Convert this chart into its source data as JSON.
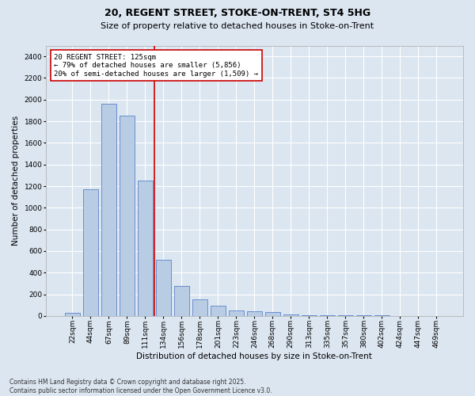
{
  "title1": "20, REGENT STREET, STOKE-ON-TRENT, ST4 5HG",
  "title2": "Size of property relative to detached houses in Stoke-on-Trent",
  "xlabel": "Distribution of detached houses by size in Stoke-on-Trent",
  "ylabel": "Number of detached properties",
  "categories": [
    "22sqm",
    "44sqm",
    "67sqm",
    "89sqm",
    "111sqm",
    "134sqm",
    "156sqm",
    "178sqm",
    "201sqm",
    "223sqm",
    "246sqm",
    "268sqm",
    "290sqm",
    "313sqm",
    "335sqm",
    "357sqm",
    "380sqm",
    "402sqm",
    "424sqm",
    "447sqm",
    "469sqm"
  ],
  "values": [
    30,
    1170,
    1960,
    1850,
    1250,
    520,
    280,
    155,
    95,
    50,
    40,
    35,
    15,
    5,
    5,
    3,
    3,
    3,
    2,
    2,
    2
  ],
  "bar_color": "#b8cce4",
  "bar_edge_color": "#4472c4",
  "vline_color": "#cc0000",
  "annotation_box_text": "20 REGENT STREET: 125sqm\n← 79% of detached houses are smaller (5,856)\n20% of semi-detached houses are larger (1,509) →",
  "annotation_box_color": "#cc0000",
  "annotation_box_bg": "#ffffff",
  "ylim": [
    0,
    2500
  ],
  "yticks": [
    0,
    200,
    400,
    600,
    800,
    1000,
    1200,
    1400,
    1600,
    1800,
    2000,
    2200,
    2400
  ],
  "background_color": "#dce6f1",
  "grid_color": "#ffffff",
  "footer_line1": "Contains HM Land Registry data © Crown copyright and database right 2025.",
  "footer_line2": "Contains public sector information licensed under the Open Government Licence v3.0.",
  "title1_fontsize": 9,
  "title2_fontsize": 8,
  "xlabel_fontsize": 7.5,
  "ylabel_fontsize": 7.5,
  "tick_fontsize": 6.5,
  "annotation_fontsize": 6.5,
  "footer_fontsize": 5.5
}
